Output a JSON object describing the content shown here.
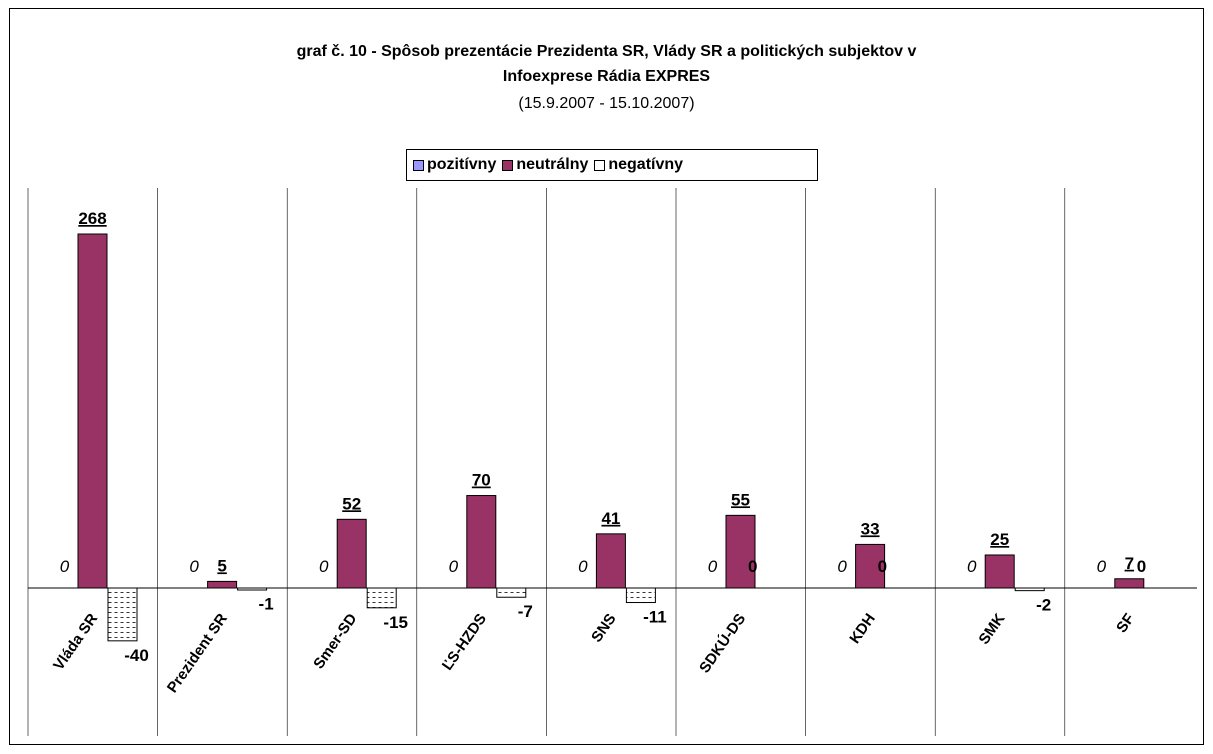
{
  "chart_data": {
    "type": "bar",
    "title": "graf č. 10 - Spôsob prezentácie Prezidenta SR, Vlády SR a politických subjektov v Infoexprese Rádia EXPRES",
    "subtitle": "(15.9.2007 - 15.10.2007)",
    "categories": [
      "Vláda SR",
      "Prezident SR",
      "Smer-SD",
      "ĽS-HZDS",
      "SNS",
      "SDKÚ-DS",
      "KDH",
      "SMK",
      "SF"
    ],
    "series": [
      {
        "name": "pozitívny",
        "color": "#9999ff",
        "values": [
          0,
          0,
          0,
          0,
          0,
          0,
          0,
          0,
          0
        ]
      },
      {
        "name": "neutrálny",
        "color": "#993366",
        "values": [
          268,
          5,
          52,
          70,
          41,
          55,
          33,
          25,
          7
        ]
      },
      {
        "name": "negatívny",
        "color": "#ffffff",
        "values": [
          -40,
          -1,
          -15,
          -7,
          -11,
          0,
          0,
          -2,
          0
        ]
      }
    ],
    "legend_position": "top",
    "grid": "vertical separators",
    "ylim": [
      -40,
      268
    ]
  }
}
